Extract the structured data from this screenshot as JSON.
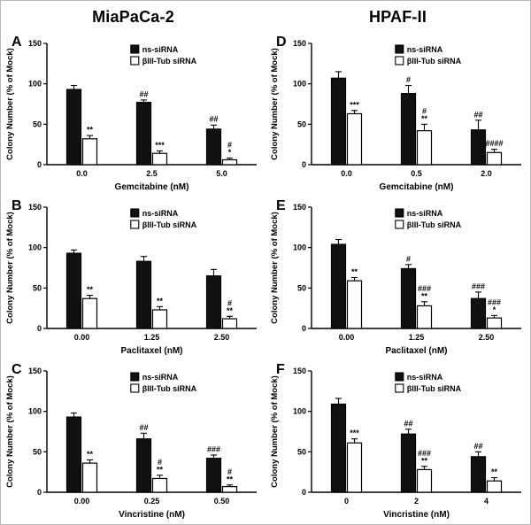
{
  "figure": {
    "column_titles": [
      "MiaPaCa-2",
      "HPAF-II"
    ],
    "colors": {
      "series1": "#111111",
      "series2": "#ffffff",
      "axis": "#000000"
    }
  },
  "chart_data": [
    {
      "type": "bar",
      "panel_label": "A",
      "cell_line": "MiaPaCa-2",
      "xlabel": "Gemcitabine (nM)",
      "ylabel": "Colony Number (% of Mock)",
      "ylim": [
        0,
        150
      ],
      "yticks": [
        0,
        50,
        100,
        150
      ],
      "categories": [
        "0.0",
        "2.5",
        "5.0"
      ],
      "legend_position": "top-right",
      "series": [
        {
          "name": "ns-siRNA",
          "values": [
            93,
            77,
            44
          ],
          "errors": [
            5,
            3,
            5
          ],
          "annotations": [
            [],
            [
              "##"
            ],
            [
              "##"
            ]
          ]
        },
        {
          "name": "βIII-Tub siRNA",
          "values": [
            32,
            14,
            6
          ],
          "errors": [
            4,
            3,
            2
          ],
          "annotations": [
            [
              "**"
            ],
            [
              "***"
            ],
            [
              "#",
              "*"
            ]
          ]
        }
      ]
    },
    {
      "type": "bar",
      "panel_label": "B",
      "cell_line": "MiaPaCa-2",
      "xlabel": "Paclitaxel (nM)",
      "ylabel": "Colony Number (% of Mock)",
      "ylim": [
        0,
        150
      ],
      "yticks": [
        0,
        50,
        100,
        150
      ],
      "categories": [
        "0.00",
        "1.25",
        "2.50"
      ],
      "legend_position": "top-right",
      "series": [
        {
          "name": "ns-siRNA",
          "values": [
            93,
            83,
            65
          ],
          "errors": [
            4,
            6,
            8
          ],
          "annotations": [
            [],
            [],
            []
          ]
        },
        {
          "name": "βIII-Tub siRNA",
          "values": [
            37,
            23,
            12
          ],
          "errors": [
            4,
            4,
            3
          ],
          "annotations": [
            [
              "**"
            ],
            [
              "**"
            ],
            [
              "#",
              "**"
            ]
          ]
        }
      ]
    },
    {
      "type": "bar",
      "panel_label": "C",
      "cell_line": "MiaPaCa-2",
      "xlabel": "Vincristine (nM)",
      "ylabel": "Colony Number (% of Mock)",
      "ylim": [
        0,
        150
      ],
      "yticks": [
        0,
        50,
        100,
        150
      ],
      "categories": [
        "0.00",
        "0.25",
        "0.50"
      ],
      "legend_position": "top-right",
      "series": [
        {
          "name": "ns-siRNA",
          "values": [
            93,
            66,
            42
          ],
          "errors": [
            5,
            7,
            4
          ],
          "annotations": [
            [],
            [
              "##"
            ],
            [
              "###"
            ]
          ]
        },
        {
          "name": "βIII-Tub siRNA",
          "values": [
            36,
            17,
            7
          ],
          "errors": [
            4,
            4,
            2
          ],
          "annotations": [
            [
              "**"
            ],
            [
              "#",
              "**"
            ],
            [
              "#",
              "**"
            ]
          ]
        }
      ]
    },
    {
      "type": "bar",
      "panel_label": "D",
      "cell_line": "HPAF-II",
      "xlabel": "Gemcitabine (nM)",
      "ylabel": "Colony Number (% of Mock)",
      "ylim": [
        0,
        150
      ],
      "yticks": [
        0,
        50,
        100,
        150
      ],
      "categories": [
        "0.0",
        "0.5",
        "2.0"
      ],
      "legend_position": "top-right",
      "series": [
        {
          "name": "ns-siRNA",
          "values": [
            107,
            88,
            43
          ],
          "errors": [
            8,
            10,
            12
          ],
          "annotations": [
            [],
            [
              "#"
            ],
            [
              "##"
            ]
          ]
        },
        {
          "name": "βIII-Tub siRNA",
          "values": [
            63,
            42,
            15
          ],
          "errors": [
            4,
            8,
            4
          ],
          "annotations": [
            [
              "***"
            ],
            [
              "#",
              "**"
            ],
            [
              "####"
            ]
          ]
        }
      ]
    },
    {
      "type": "bar",
      "panel_label": "E",
      "cell_line": "HPAF-II",
      "xlabel": "Paclitaxel (nM)",
      "ylabel": "Colony Number (% of Mock)",
      "ylim": [
        0,
        150
      ],
      "yticks": [
        0,
        50,
        100,
        150
      ],
      "categories": [
        "0.00",
        "1.25",
        "2.50"
      ],
      "legend_position": "top-right",
      "series": [
        {
          "name": "ns-siRNA",
          "values": [
            104,
            74,
            37
          ],
          "errors": [
            6,
            5,
            8
          ],
          "annotations": [
            [],
            [
              "#"
            ],
            [
              "###"
            ]
          ]
        },
        {
          "name": "βIII-Tub siRNA",
          "values": [
            59,
            28,
            13
          ],
          "errors": [
            4,
            5,
            3
          ],
          "annotations": [
            [
              "**"
            ],
            [
              "###",
              "**"
            ],
            [
              "###",
              "*"
            ]
          ]
        }
      ]
    },
    {
      "type": "bar",
      "panel_label": "F",
      "cell_line": "HPAF-II",
      "xlabel": "Vincristine (nM)",
      "ylabel": "Colony Number (% of Mock)",
      "ylim": [
        0,
        150
      ],
      "yticks": [
        0,
        50,
        100,
        150
      ],
      "categories": [
        "0",
        "2",
        "4"
      ],
      "legend_position": "top-right",
      "series": [
        {
          "name": "ns-siRNA",
          "values": [
            109,
            72,
            44
          ],
          "errors": [
            7,
            6,
            6
          ],
          "annotations": [
            [],
            [
              "##"
            ],
            [
              "##"
            ]
          ]
        },
        {
          "name": "βIII-Tub siRNA",
          "values": [
            61,
            28,
            14
          ],
          "errors": [
            5,
            4,
            4
          ],
          "annotations": [
            [
              "***"
            ],
            [
              "###",
              "**"
            ],
            [
              "**"
            ]
          ]
        }
      ]
    }
  ]
}
